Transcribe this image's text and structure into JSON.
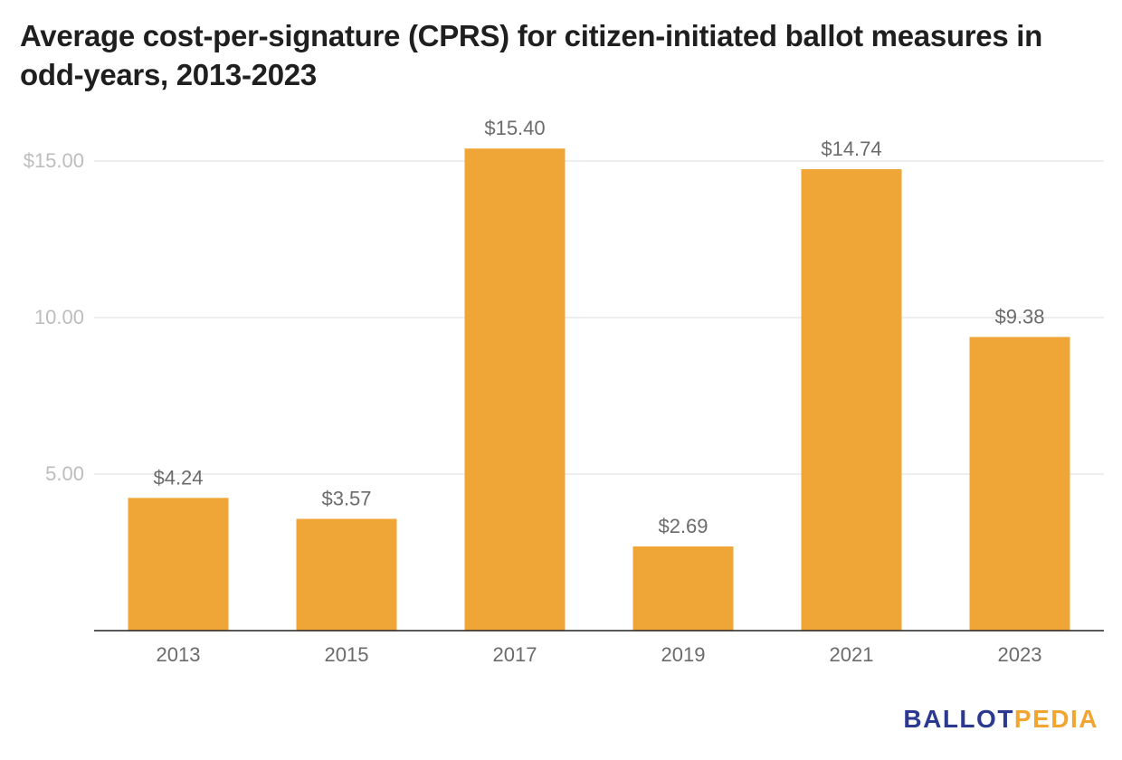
{
  "chart_data": {
    "type": "bar",
    "title": "Average cost-per-signature (CPRS) for citizen-initiated ballot measures in odd-years, 2013-2023",
    "categories": [
      "2013",
      "2015",
      "2017",
      "2019",
      "2021",
      "2023"
    ],
    "values": [
      4.24,
      3.57,
      15.4,
      2.69,
      14.74,
      9.38
    ],
    "data_labels": [
      "$4.24",
      "$3.57",
      "$15.40",
      "$2.69",
      "$14.74",
      "$9.38"
    ],
    "ylim": [
      0,
      15.4
    ],
    "yticks": [
      5,
      10,
      15
    ],
    "ytick_labels": [
      "5.00",
      "10.00",
      "$15.00"
    ],
    "grid": true,
    "bar_color": "#f0a537",
    "xlabel": "",
    "ylabel": ""
  },
  "branding": {
    "logo_part1": "BALLOT",
    "logo_part2": "PEDIA",
    "logo_color_primary": "#2b3990",
    "logo_color_accent": "#f2a531"
  }
}
